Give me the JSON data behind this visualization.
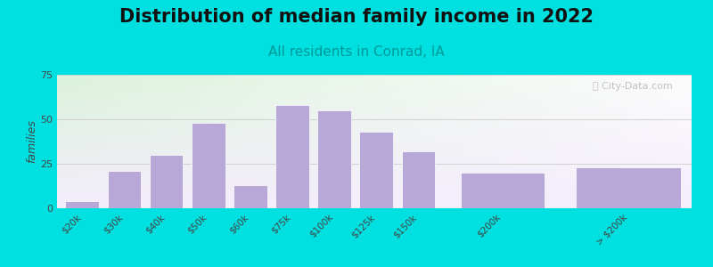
{
  "title": "Distribution of median family income in 2022",
  "subtitle": "All residents in Conrad, IA",
  "categories": [
    "$20k",
    "$30k",
    "$40k",
    "$50k",
    "$60k",
    "$75k",
    "$100k",
    "$125k",
    "$150k",
    "$200k",
    "> $200k"
  ],
  "values": [
    4,
    21,
    30,
    48,
    13,
    58,
    55,
    43,
    32,
    20,
    23
  ],
  "bar_color": "#b8a8d8",
  "bar_edgecolor": "#ffffff",
  "ylabel": "families",
  "ylim": [
    0,
    75
  ],
  "yticks": [
    0,
    25,
    50,
    75
  ],
  "bg_color_topleft": "#ddf0dd",
  "bg_color_topright": "#f5f0f8",
  "bg_color_bottom": "#f8f5fc",
  "outer_bg": "#00e0e0",
  "title_fontsize": 15,
  "subtitle_fontsize": 11,
  "subtitle_color": "#009999",
  "watermark": "City-Data.com",
  "bar_positions": [
    0,
    1,
    2,
    3,
    4,
    5,
    6,
    7,
    8,
    10,
    13
  ],
  "bar_widths": [
    0.8,
    0.8,
    0.8,
    0.8,
    0.8,
    0.8,
    0.8,
    0.8,
    0.8,
    2.0,
    2.5
  ]
}
